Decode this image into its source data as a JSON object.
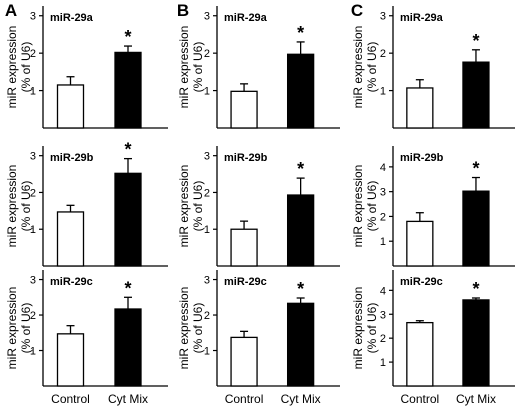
{
  "chart_data": {
    "type": "bar",
    "ylabel_lines": [
      "miR expression",
      "(% of U6)"
    ],
    "categories": [
      "Control",
      "Cyt Mix"
    ],
    "bar_colors": [
      "#ffffff",
      "#000000"
    ],
    "significance_marker": "*",
    "panels": [
      {
        "label": "A",
        "charts": [
          {
            "title": "miR-29a",
            "yticks": [
              1,
              2,
              3
            ],
            "ylim": [
              0,
              3.1
            ],
            "values": [
              1.15,
              2.02
            ],
            "errors": [
              0.22,
              0.17
            ],
            "significant": [
              false,
              true
            ]
          },
          {
            "title": "miR-29b",
            "yticks": [
              1,
              2,
              3
            ],
            "ylim": [
              0,
              3.1
            ],
            "values": [
              1.47,
              2.52
            ],
            "errors": [
              0.18,
              0.4
            ],
            "significant": [
              false,
              true
            ]
          },
          {
            "title": "miR-29c",
            "yticks": [
              1,
              2,
              3
            ],
            "ylim": [
              0,
              3.1
            ],
            "values": [
              1.47,
              2.17
            ],
            "errors": [
              0.23,
              0.33
            ],
            "significant": [
              false,
              true
            ]
          }
        ]
      },
      {
        "label": "B",
        "charts": [
          {
            "title": "miR-29a",
            "yticks": [
              1,
              2,
              3
            ],
            "ylim": [
              0,
              3.1
            ],
            "values": [
              0.98,
              1.97
            ],
            "errors": [
              0.2,
              0.33
            ],
            "significant": [
              false,
              true
            ]
          },
          {
            "title": "miR-29b",
            "yticks": [
              1,
              2,
              3
            ],
            "ylim": [
              0,
              3.1
            ],
            "values": [
              1.0,
              1.93
            ],
            "errors": [
              0.22,
              0.46
            ],
            "significant": [
              false,
              true
            ]
          },
          {
            "title": "miR-29c",
            "yticks": [
              1,
              2,
              3
            ],
            "ylim": [
              0,
              3.1
            ],
            "values": [
              1.37,
              2.33
            ],
            "errors": [
              0.17,
              0.15
            ],
            "significant": [
              false,
              true
            ]
          }
        ]
      },
      {
        "label": "C",
        "charts": [
          {
            "title": "miR-29a",
            "yticks": [
              1,
              2,
              3
            ],
            "ylim": [
              0,
              3.1
            ],
            "values": [
              1.07,
              1.76
            ],
            "errors": [
              0.22,
              0.33
            ],
            "significant": [
              false,
              true
            ]
          },
          {
            "title": "miR-29b",
            "yticks": [
              1,
              2,
              3,
              4
            ],
            "ylim": [
              0,
              4.6
            ],
            "values": [
              1.8,
              3.02
            ],
            "errors": [
              0.35,
              0.55
            ],
            "significant": [
              false,
              true
            ]
          },
          {
            "title": "miR-29c",
            "yticks": [
              1,
              2,
              3,
              4
            ],
            "ylim": [
              0,
              4.6
            ],
            "values": [
              2.65,
              3.6
            ],
            "errors": [
              0.08,
              0.08
            ],
            "significant": [
              false,
              true
            ]
          }
        ]
      }
    ]
  }
}
